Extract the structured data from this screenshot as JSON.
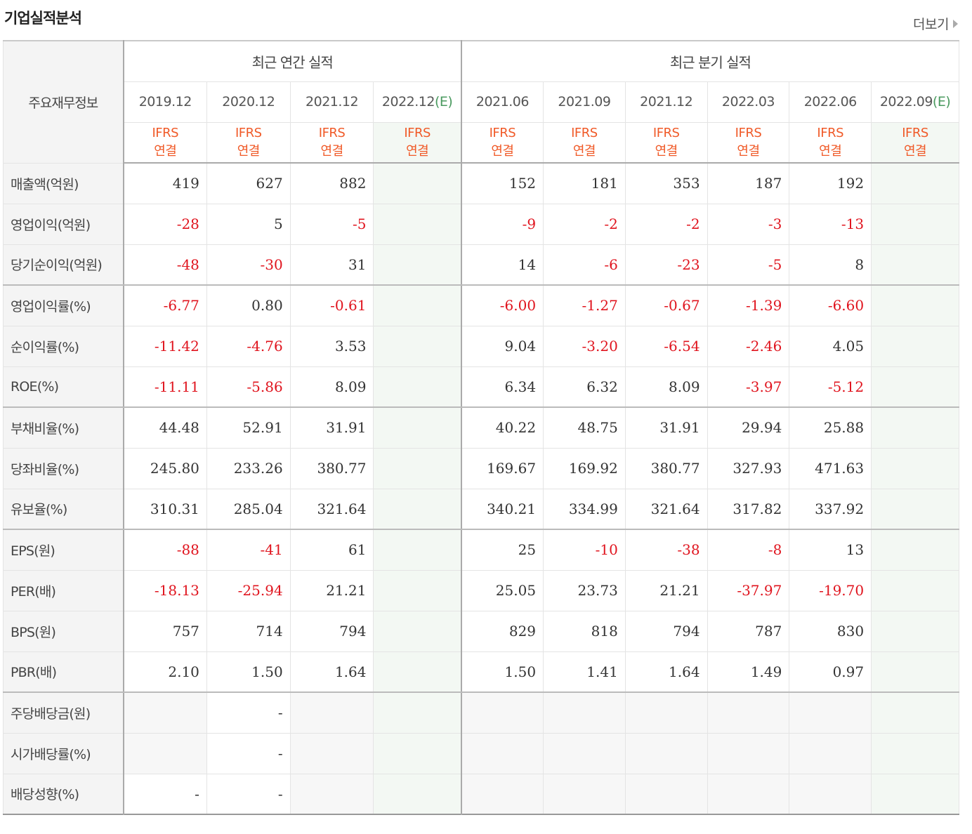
{
  "header": {
    "title": "기업실적분석",
    "more_label": "더보기"
  },
  "table": {
    "corner_label": "주요재무정보",
    "groups": {
      "annual": "최근 연간 실적",
      "quarterly": "최근 분기 실적"
    },
    "periods": [
      "2019.12",
      "2020.12",
      "2021.12",
      "2022.12",
      "2021.06",
      "2021.09",
      "2021.12",
      "2022.03",
      "2022.06",
      "2022.09"
    ],
    "estimate_suffix": "(E)",
    "ifrs_line1": "IFRS",
    "ifrs_line2": "연결",
    "rows": [
      {
        "label": "매출액(억원)",
        "values": [
          "419",
          "627",
          "882",
          "",
          "152",
          "181",
          "353",
          "187",
          "192",
          ""
        ]
      },
      {
        "label": "영업이익(억원)",
        "values": [
          "-28",
          "5",
          "-5",
          "",
          "-9",
          "-2",
          "-2",
          "-3",
          "-13",
          ""
        ]
      },
      {
        "label": "당기순이익(억원)",
        "values": [
          "-48",
          "-30",
          "31",
          "",
          "14",
          "-6",
          "-23",
          "-5",
          "8",
          ""
        ]
      },
      {
        "label": "영업이익률(%)",
        "values": [
          "-6.77",
          "0.80",
          "-0.61",
          "",
          "-6.00",
          "-1.27",
          "-0.67",
          "-1.39",
          "-6.60",
          ""
        ]
      },
      {
        "label": "순이익률(%)",
        "values": [
          "-11.42",
          "-4.76",
          "3.53",
          "",
          "9.04",
          "-3.20",
          "-6.54",
          "-2.46",
          "4.05",
          ""
        ]
      },
      {
        "label": "ROE(%)",
        "values": [
          "-11.11",
          "-5.86",
          "8.09",
          "",
          "6.34",
          "6.32",
          "8.09",
          "-3.97",
          "-5.12",
          ""
        ]
      },
      {
        "label": "부채비율(%)",
        "values": [
          "44.48",
          "52.91",
          "31.91",
          "",
          "40.22",
          "48.75",
          "31.91",
          "29.94",
          "25.88",
          ""
        ]
      },
      {
        "label": "당좌비율(%)",
        "values": [
          "245.80",
          "233.26",
          "380.77",
          "",
          "169.67",
          "169.92",
          "380.77",
          "327.93",
          "471.63",
          ""
        ]
      },
      {
        "label": "유보율(%)",
        "values": [
          "310.31",
          "285.04",
          "321.64",
          "",
          "340.21",
          "334.99",
          "321.64",
          "317.82",
          "337.92",
          ""
        ]
      },
      {
        "label": "EPS(원)",
        "values": [
          "-88",
          "-41",
          "61",
          "",
          "25",
          "-10",
          "-38",
          "-8",
          "13",
          ""
        ]
      },
      {
        "label": "PER(배)",
        "values": [
          "-18.13",
          "-25.94",
          "21.21",
          "",
          "25.05",
          "23.73",
          "21.21",
          "-37.97",
          "-19.70",
          ""
        ]
      },
      {
        "label": "BPS(원)",
        "values": [
          "757",
          "714",
          "794",
          "",
          "829",
          "818",
          "794",
          "787",
          "830",
          ""
        ]
      },
      {
        "label": "PBR(배)",
        "values": [
          "2.10",
          "1.50",
          "1.64",
          "",
          "1.50",
          "1.41",
          "1.64",
          "1.49",
          "0.97",
          ""
        ]
      },
      {
        "label": "주당배당금(원)",
        "values": [
          "",
          "-",
          "",
          "",
          "",
          "",
          "",
          "",
          "",
          ""
        ]
      },
      {
        "label": "시가배당률(%)",
        "values": [
          "",
          "-",
          "",
          "",
          "",
          "",
          "",
          "",
          "",
          ""
        ]
      },
      {
        "label": "배당성향(%)",
        "values": [
          "-",
          "-",
          "",
          "",
          "",
          "",
          "",
          "",
          "",
          ""
        ]
      }
    ]
  },
  "colors": {
    "negative": "#e0141e",
    "ifrs": "#f05a28",
    "estimate": "#4a9a5f",
    "label_bg": "#f4f4f4",
    "estimate_bg": "#f3f8f3"
  }
}
